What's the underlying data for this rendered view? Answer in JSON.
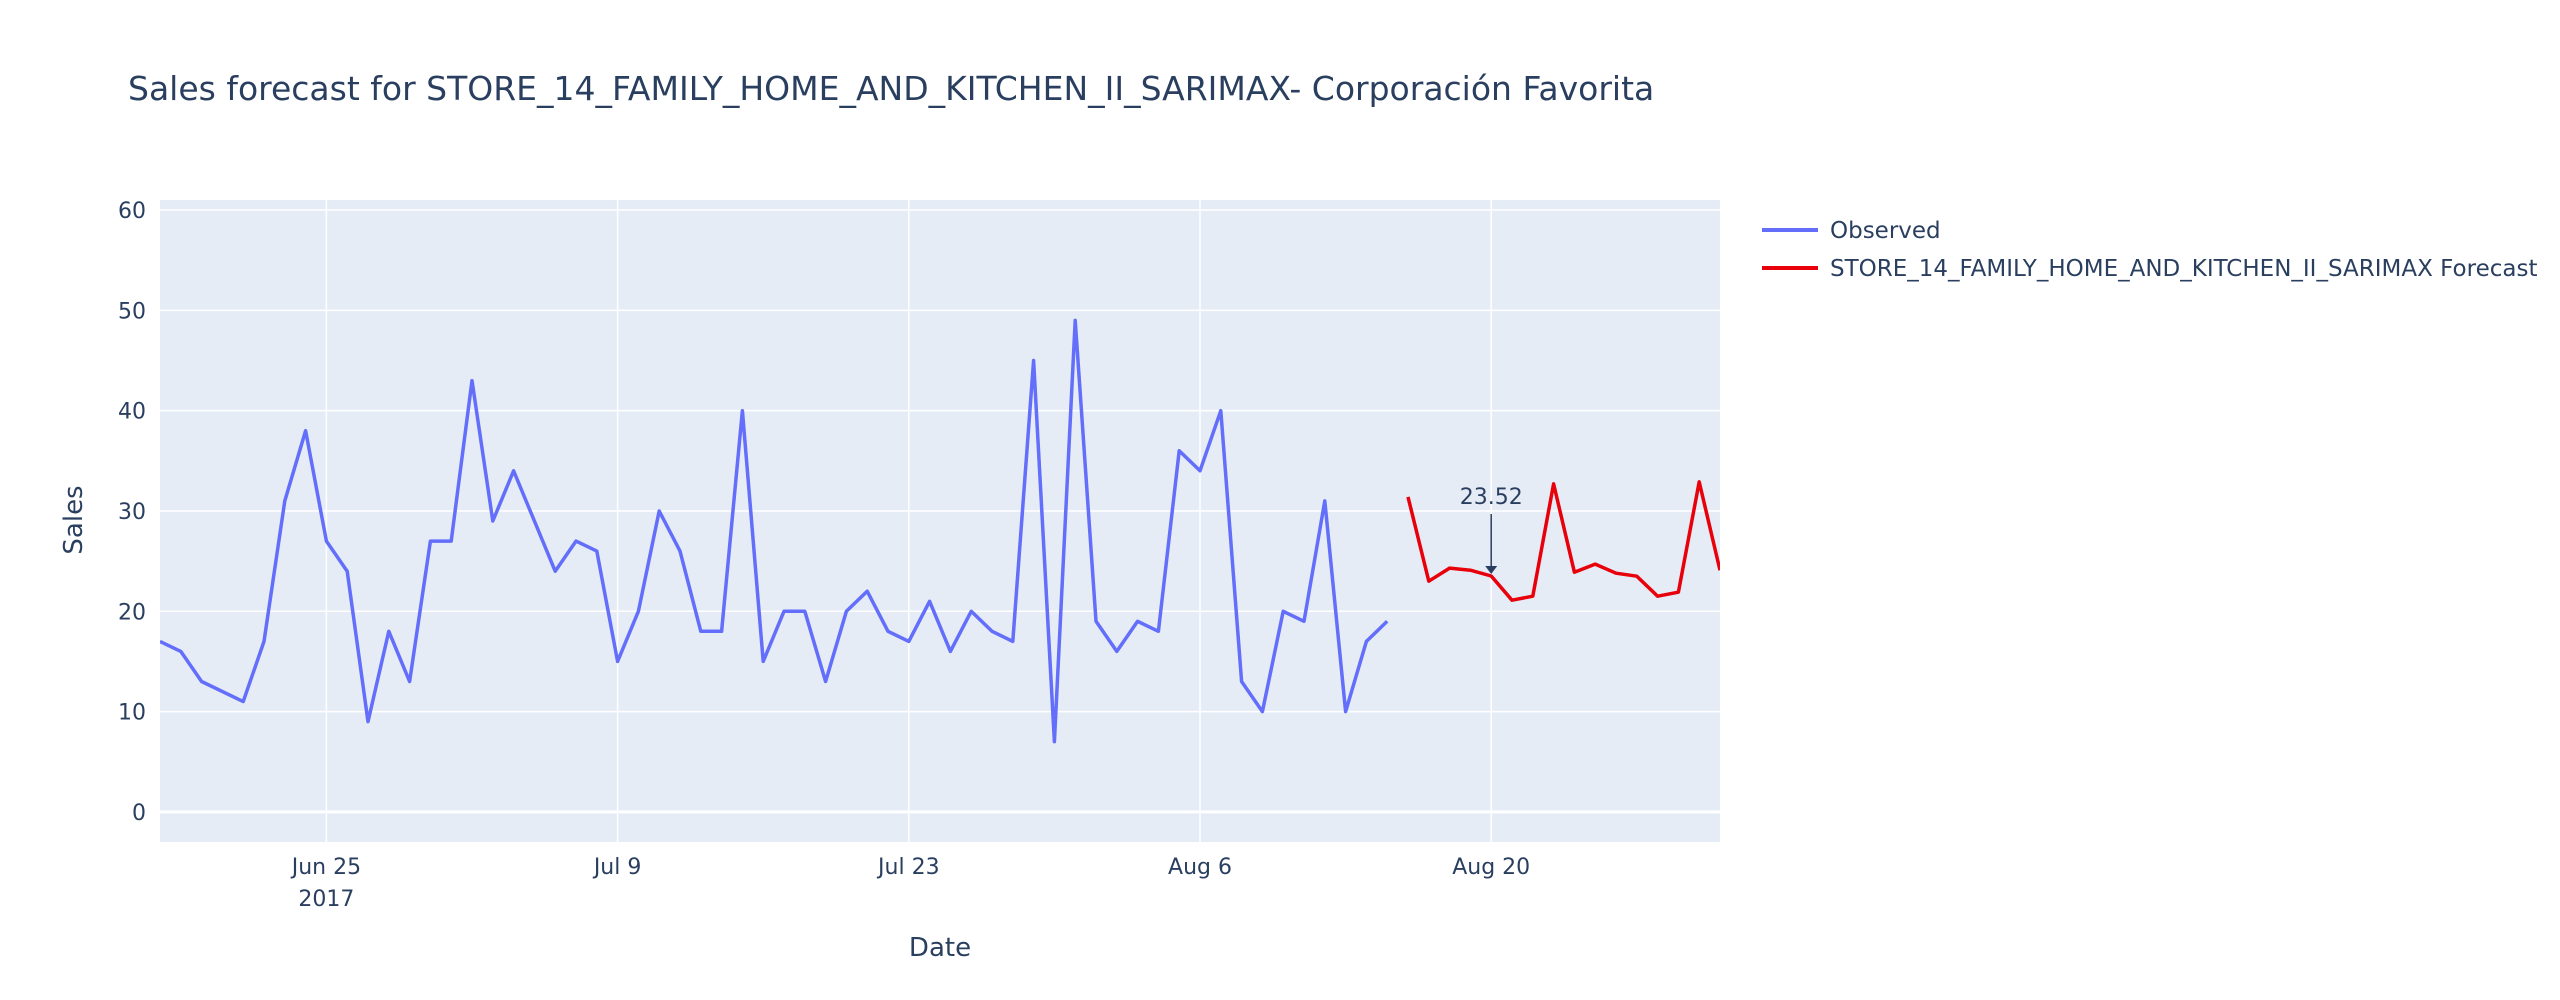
{
  "chart_data": {
    "type": "line",
    "title": "Sales forecast for STORE_14_FAMILY_HOME_AND_KITCHEN_II_SARIMAX- Corporación Favorita",
    "xlabel": "Date",
    "ylabel": "Sales",
    "xlim": [
      "2017-06-17",
      "2017-08-31"
    ],
    "ylim": [
      -3,
      61
    ],
    "grid": true,
    "x_ticks": [
      {
        "date": "2017-06-25",
        "label": "Jun 25",
        "sub": "2017"
      },
      {
        "date": "2017-07-09",
        "label": "Jul 9",
        "sub": ""
      },
      {
        "date": "2017-07-23",
        "label": "Jul 23",
        "sub": ""
      },
      {
        "date": "2017-08-06",
        "label": "Aug 6",
        "sub": ""
      },
      {
        "date": "2017-08-20",
        "label": "Aug 20",
        "sub": ""
      }
    ],
    "y_ticks": [
      0,
      10,
      20,
      30,
      40,
      50,
      60
    ],
    "legend_position": "top-right, outside plot",
    "series": [
      {
        "name": "Observed",
        "color": "#636efa",
        "points": [
          [
            "2017-06-17",
            17
          ],
          [
            "2017-06-18",
            16
          ],
          [
            "2017-06-19",
            13
          ],
          [
            "2017-06-21",
            11
          ],
          [
            "2017-06-22",
            17
          ],
          [
            "2017-06-23",
            31
          ],
          [
            "2017-06-24",
            38
          ],
          [
            "2017-06-25",
            27
          ],
          [
            "2017-06-26",
            24
          ],
          [
            "2017-06-27",
            9
          ],
          [
            "2017-06-28",
            18
          ],
          [
            "2017-06-29",
            13
          ],
          [
            "2017-06-30",
            27
          ],
          [
            "2017-07-01",
            27
          ],
          [
            "2017-07-02",
            43
          ],
          [
            "2017-07-03",
            29
          ],
          [
            "2017-07-04",
            34
          ],
          [
            "2017-07-05",
            29
          ],
          [
            "2017-07-06",
            24
          ],
          [
            "2017-07-07",
            27
          ],
          [
            "2017-07-08",
            26
          ],
          [
            "2017-07-09",
            15
          ],
          [
            "2017-07-10",
            20
          ],
          [
            "2017-07-11",
            30
          ],
          [
            "2017-07-12",
            26
          ],
          [
            "2017-07-13",
            18
          ],
          [
            "2017-07-14",
            18
          ],
          [
            "2017-07-15",
            40
          ],
          [
            "2017-07-16",
            15
          ],
          [
            "2017-07-17",
            20
          ],
          [
            "2017-07-18",
            20
          ],
          [
            "2017-07-19",
            13
          ],
          [
            "2017-07-20",
            20
          ],
          [
            "2017-07-21",
            22
          ],
          [
            "2017-07-22",
            18
          ],
          [
            "2017-07-23",
            17
          ],
          [
            "2017-07-24",
            21
          ],
          [
            "2017-07-25",
            16
          ],
          [
            "2017-07-26",
            20
          ],
          [
            "2017-07-27",
            18
          ],
          [
            "2017-07-28",
            17
          ],
          [
            "2017-07-29",
            45
          ],
          [
            "2017-07-30",
            7
          ],
          [
            "2017-07-31",
            49
          ],
          [
            "2017-08-01",
            19
          ],
          [
            "2017-08-02",
            16
          ],
          [
            "2017-08-03",
            19
          ],
          [
            "2017-08-04",
            18
          ],
          [
            "2017-08-05",
            36
          ],
          [
            "2017-08-06",
            34
          ],
          [
            "2017-08-07",
            40
          ],
          [
            "2017-08-08",
            13
          ],
          [
            "2017-08-09",
            10
          ],
          [
            "2017-08-10",
            20
          ],
          [
            "2017-08-11",
            19
          ],
          [
            "2017-08-12",
            31
          ],
          [
            "2017-08-13",
            10
          ],
          [
            "2017-08-14",
            17
          ],
          [
            "2017-08-15",
            19
          ]
        ]
      },
      {
        "name": "STORE_14_FAMILY_HOME_AND_KITCHEN_II_SARIMAX Forecast",
        "color": "#e8000b",
        "points": [
          [
            "2017-08-16",
            31.4
          ],
          [
            "2017-08-17",
            23.0
          ],
          [
            "2017-08-18",
            24.3
          ],
          [
            "2017-08-19",
            24.1
          ],
          [
            "2017-08-20",
            23.52
          ],
          [
            "2017-08-21",
            21.1
          ],
          [
            "2017-08-22",
            21.5
          ],
          [
            "2017-08-23",
            32.7
          ],
          [
            "2017-08-24",
            23.9
          ],
          [
            "2017-08-25",
            24.7
          ],
          [
            "2017-08-26",
            23.8
          ],
          [
            "2017-08-27",
            23.5
          ],
          [
            "2017-08-28",
            21.5
          ],
          [
            "2017-08-29",
            21.9
          ],
          [
            "2017-08-30",
            32.9
          ],
          [
            "2017-08-31",
            24.1
          ]
        ]
      }
    ],
    "annotations": [
      {
        "x": "2017-08-20",
        "y": 23.52,
        "text": "23.52"
      }
    ]
  }
}
